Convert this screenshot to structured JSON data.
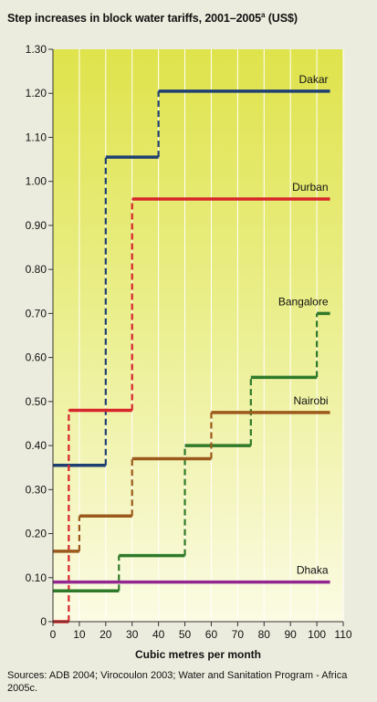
{
  "header": {
    "title": "Step increases in block water tariffs, 2001–2005",
    "title_sup": "a",
    "title_unit": "(US$)"
  },
  "footer": {
    "sources": "Sources: ADB 2004; Virocoulon 2003; Water and Sanitation Program - Africa 2005c."
  },
  "chart_data": {
    "type": "line",
    "step": true,
    "xlabel": "Cubic metres per month",
    "ylabel": "",
    "xlim": [
      0,
      110
    ],
    "ylim": [
      0,
      1.3
    ],
    "x_ticks": [
      0,
      10,
      20,
      30,
      40,
      50,
      60,
      70,
      80,
      90,
      100,
      110
    ],
    "x_tick_labels": [
      "0",
      "10",
      "20",
      "30",
      "40",
      "50",
      "60",
      "70",
      "80",
      "90",
      "100",
      "110"
    ],
    "y_ticks": [
      0,
      0.1,
      0.2,
      0.3,
      0.4,
      0.5,
      0.6,
      0.7,
      0.8,
      0.9,
      1.0,
      1.1,
      1.2,
      1.3
    ],
    "y_tick_labels": [
      "0",
      "0.10",
      "0.20",
      "0.30",
      "0.40",
      "0.50",
      "0.60",
      "0.70",
      "0.80",
      "0.90",
      "1.00",
      "1.10",
      "1.20",
      "1.30"
    ],
    "grid": "vertical",
    "background": "gradient-yellow",
    "series": [
      {
        "name": "Dakar",
        "color": "#1f3f73",
        "steps": [
          {
            "x0": 0,
            "x1": 20,
            "y": 0.355
          },
          {
            "x0": 20,
            "x1": 40,
            "y": 1.055
          },
          {
            "x0": 40,
            "x1": 105,
            "y": 1.205
          }
        ]
      },
      {
        "name": "Durban",
        "color": "#d7262b",
        "steps": [
          {
            "x0": 0,
            "x1": 6,
            "y": 0.0
          },
          {
            "x0": 6,
            "x1": 30,
            "y": 0.48
          },
          {
            "x0": 30,
            "x1": 105,
            "y": 0.96
          }
        ]
      },
      {
        "name": "Bangalore",
        "color": "#2f7a2a",
        "steps": [
          {
            "x0": 0,
            "x1": 25,
            "y": 0.07
          },
          {
            "x0": 25,
            "x1": 50,
            "y": 0.15
          },
          {
            "x0": 50,
            "x1": 75,
            "y": 0.4
          },
          {
            "x0": 75,
            "x1": 100,
            "y": 0.555
          },
          {
            "x0": 100,
            "x1": 105,
            "y": 0.7
          }
        ]
      },
      {
        "name": "Nairobi",
        "color": "#9b5a1c",
        "steps": [
          {
            "x0": 0,
            "x1": 10,
            "y": 0.16
          },
          {
            "x0": 10,
            "x1": 30,
            "y": 0.24
          },
          {
            "x0": 30,
            "x1": 60,
            "y": 0.37
          },
          {
            "x0": 60,
            "x1": 105,
            "y": 0.475
          }
        ]
      },
      {
        "name": "Dhaka",
        "color": "#92278f",
        "steps": [
          {
            "x0": 0,
            "x1": 105,
            "y": 0.09
          }
        ]
      }
    ]
  }
}
